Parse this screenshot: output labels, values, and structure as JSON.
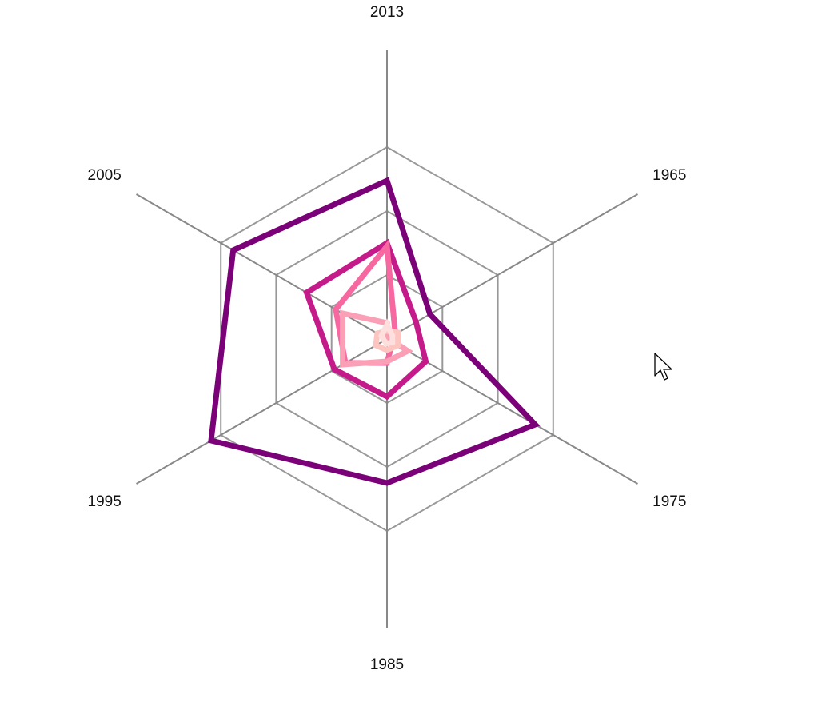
{
  "chart_data": {
    "type": "radar",
    "title": "",
    "categories": [
      "2013",
      "1965",
      "1975",
      "1985",
      "1995",
      "2005"
    ],
    "rmax": 120,
    "grid_levels": [
      40,
      80,
      120
    ],
    "grid": true,
    "legend": "none",
    "series": [
      {
        "color": "#7a0177",
        "values": [
          99,
          31,
          107,
          90,
          127,
          111
        ]
      },
      {
        "color": "#c51b8a",
        "values": [
          60,
          21,
          28,
          36,
          38,
          58
        ]
      },
      {
        "color": "#f768a1",
        "values": [
          58,
          6,
          4,
          15,
          30,
          37
        ]
      },
      {
        "color": "#fa9fb5",
        "values": [
          10,
          1,
          15,
          14,
          32,
          32
        ]
      },
      {
        "color": "#fcc5c0",
        "values": [
          5,
          8,
          8,
          7,
          8,
          7
        ]
      },
      {
        "color": "#fde0dd",
        "values": [
          9,
          4,
          4,
          3,
          2,
          4
        ]
      }
    ],
    "colors": {
      "grid": "#999999",
      "axis": "#888888",
      "text": "#111111"
    }
  }
}
